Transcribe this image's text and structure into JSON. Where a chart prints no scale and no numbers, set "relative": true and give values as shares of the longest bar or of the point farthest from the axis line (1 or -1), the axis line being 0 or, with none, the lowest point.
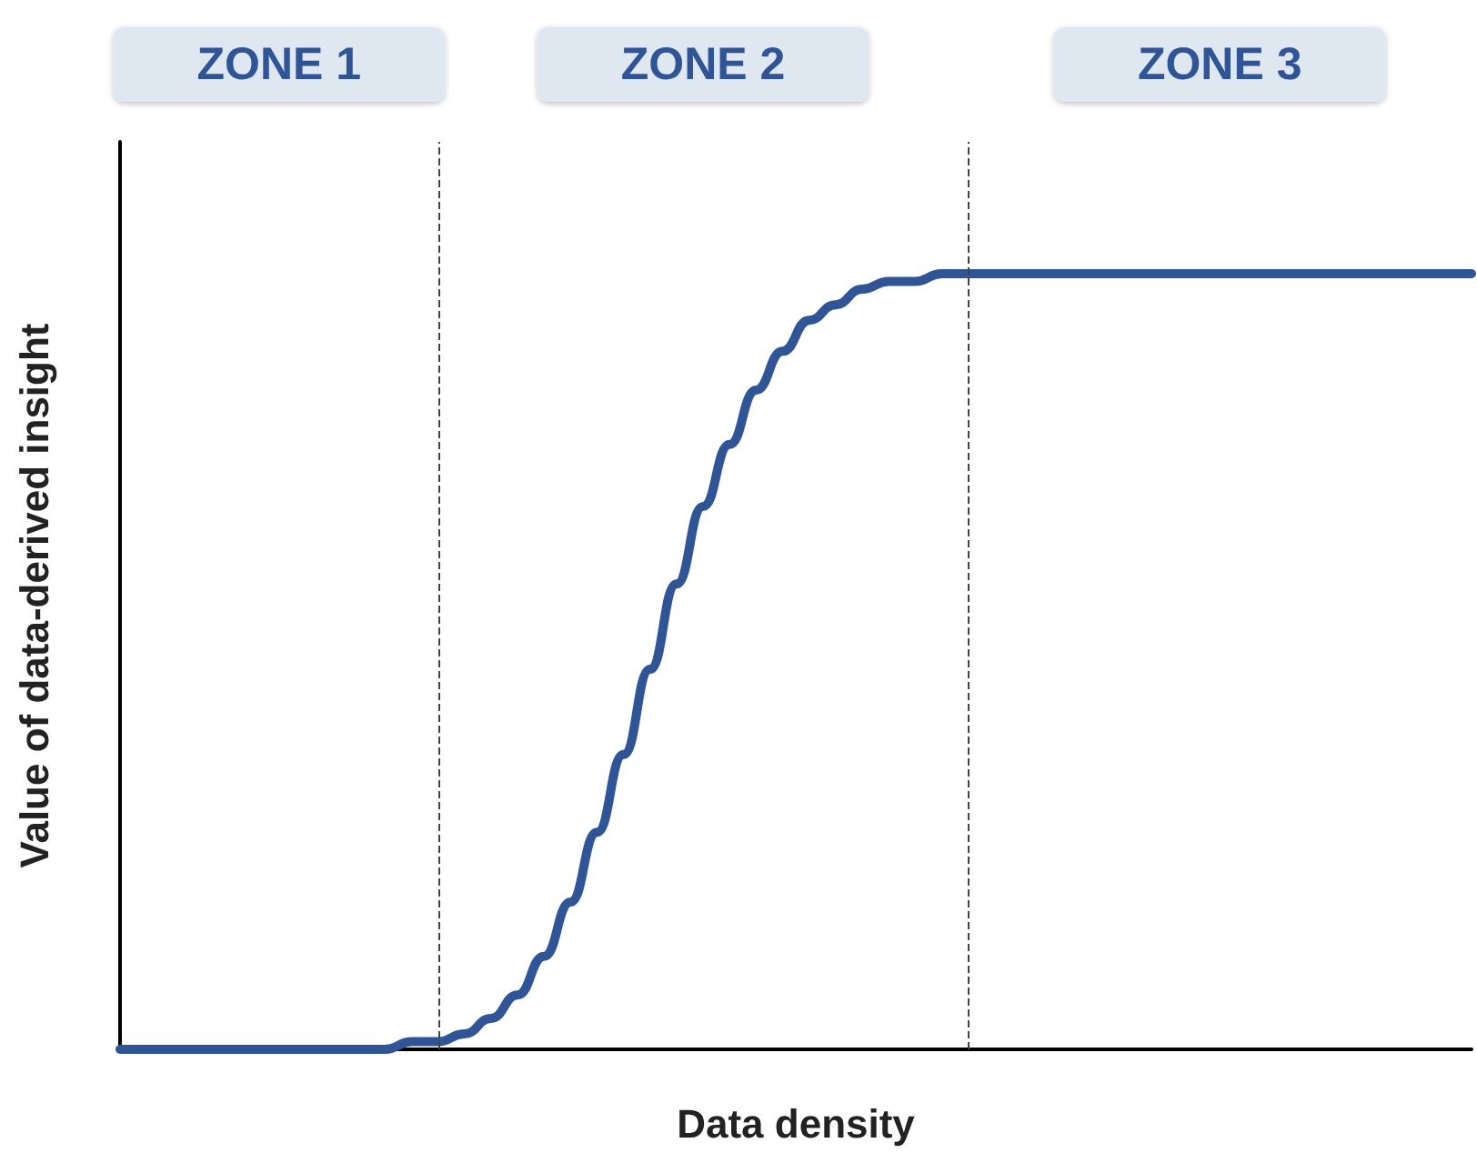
{
  "chart_data": {
    "type": "line",
    "relative": true,
    "xlabel": "Data density",
    "ylabel": "Value of data-derived insight",
    "categories": [
      null,
      null,
      null,
      null,
      null,
      null,
      null,
      null,
      null,
      null,
      null,
      null,
      null,
      null,
      null,
      null,
      null,
      null,
      null,
      null,
      null,
      null,
      null,
      null,
      null,
      null,
      null,
      null,
      null,
      null,
      null,
      null,
      null,
      null,
      null,
      null,
      null,
      null,
      null,
      null,
      null,
      null,
      null,
      null,
      null,
      null,
      null,
      null,
      null,
      null,
      null,
      null
    ],
    "series": [
      {
        "color": "#2f5597",
        "values": [
          0,
          0,
          0,
          0,
          0,
          0,
          0,
          0,
          0,
          0,
          0,
          0.01,
          0.01,
          0.02,
          0.04,
          0.07,
          0.12,
          0.19,
          0.28,
          0.38,
          0.49,
          0.6,
          0.7,
          0.78,
          0.85,
          0.9,
          0.94,
          0.96,
          0.98,
          0.99,
          0.99,
          1,
          1,
          1,
          1,
          1,
          1,
          1,
          1,
          1,
          1,
          1,
          1,
          1,
          1,
          1,
          1,
          1,
          1,
          1,
          1,
          1
        ]
      }
    ],
    "marker": "none",
    "line_style": "solid",
    "annotations": [
      "ZONE 1",
      "ZONE 2",
      "ZONE 3"
    ]
  }
}
